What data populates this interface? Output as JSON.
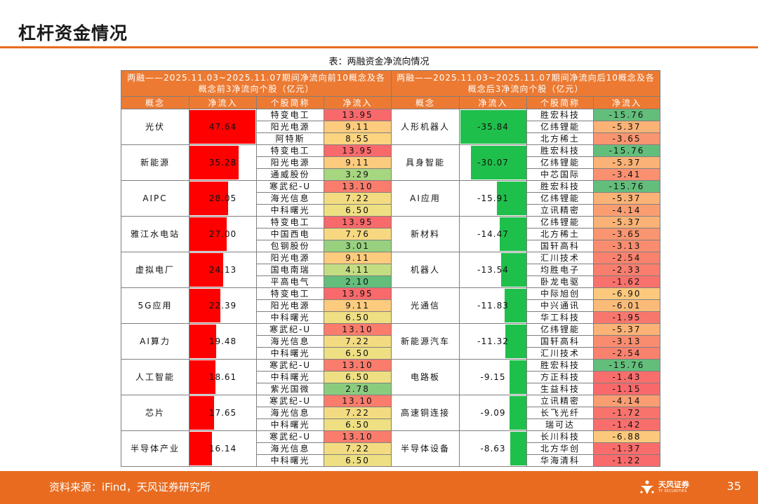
{
  "header": {
    "title": "杠杆资金情况"
  },
  "caption": "表：两融资金净流向情况",
  "table": {
    "left_heading": "两融——2025.11.03~2025.11.07期间净流向前10概念及各概念前3净流向个股（亿元）",
    "right_heading": "两融——2025.11.03~2025.11.07期间净流向后10概念及各概念后3净流向个股（亿元）",
    "col_concept": "概念",
    "col_flow": "净流入",
    "col_stock": "个股简称",
    "col_stock_flow": "净流入",
    "left": [
      {
        "concept": "光伏",
        "flow": "47.64",
        "stocks": [
          {
            "name": "特变电工",
            "flow": "13.95"
          },
          {
            "name": "阳光电源",
            "flow": "9.11"
          },
          {
            "name": "阿特斯",
            "flow": "8.55"
          }
        ]
      },
      {
        "concept": "新能源",
        "flow": "35.28",
        "stocks": [
          {
            "name": "特变电工",
            "flow": "13.95"
          },
          {
            "name": "阳光电源",
            "flow": "9.11"
          },
          {
            "name": "通威股份",
            "flow": "3.29"
          }
        ]
      },
      {
        "concept": "AIPC",
        "flow": "28.05",
        "stocks": [
          {
            "name": "寒武纪-U",
            "flow": "13.10"
          },
          {
            "name": "海光信息",
            "flow": "7.22"
          },
          {
            "name": "中科曙光",
            "flow": "6.50"
          }
        ]
      },
      {
        "concept": "雅江水电站",
        "flow": "27.00",
        "stocks": [
          {
            "name": "特变电工",
            "flow": "13.95"
          },
          {
            "name": "中国西电",
            "flow": "7.76"
          },
          {
            "name": "包钢股份",
            "flow": "3.01"
          }
        ]
      },
      {
        "concept": "虚拟电厂",
        "flow": "24.13",
        "stocks": [
          {
            "name": "阳光电源",
            "flow": "9.11"
          },
          {
            "name": "国电南瑞",
            "flow": "4.11"
          },
          {
            "name": "平高电气",
            "flow": "2.10"
          }
        ]
      },
      {
        "concept": "5G应用",
        "flow": "22.39",
        "stocks": [
          {
            "name": "特变电工",
            "flow": "13.95"
          },
          {
            "name": "阳光电源",
            "flow": "9.11"
          },
          {
            "name": "中科曙光",
            "flow": "6.50"
          }
        ]
      },
      {
        "concept": "AI算力",
        "flow": "19.48",
        "stocks": [
          {
            "name": "寒武纪-U",
            "flow": "13.10"
          },
          {
            "name": "海光信息",
            "flow": "7.22"
          },
          {
            "name": "中科曙光",
            "flow": "6.50"
          }
        ]
      },
      {
        "concept": "人工智能",
        "flow": "18.61",
        "stocks": [
          {
            "name": "寒武纪-U",
            "flow": "13.10"
          },
          {
            "name": "中科曙光",
            "flow": "6.50"
          },
          {
            "name": "紫光国微",
            "flow": "2.78"
          }
        ]
      },
      {
        "concept": "芯片",
        "flow": "17.65",
        "stocks": [
          {
            "name": "寒武纪-U",
            "flow": "13.10"
          },
          {
            "name": "海光信息",
            "flow": "7.22"
          },
          {
            "name": "中科曙光",
            "flow": "6.50"
          }
        ]
      },
      {
        "concept": "半导体产业",
        "flow": "16.14",
        "stocks": [
          {
            "name": "寒武纪-U",
            "flow": "13.10"
          },
          {
            "name": "海光信息",
            "flow": "7.22"
          },
          {
            "name": "中科曙光",
            "flow": "6.50"
          }
        ]
      }
    ],
    "right": [
      {
        "concept": "人形机器人",
        "flow": "-35.84",
        "stocks": [
          {
            "name": "胜宏科技",
            "flow": "-15.76"
          },
          {
            "name": "亿纬锂能",
            "flow": "-5.37"
          },
          {
            "name": "北方稀土",
            "flow": "-3.65"
          }
        ]
      },
      {
        "concept": "具身智能",
        "flow": "-30.07",
        "stocks": [
          {
            "name": "胜宏科技",
            "flow": "-15.76"
          },
          {
            "name": "亿纬锂能",
            "flow": "-5.37"
          },
          {
            "name": "中芯国际",
            "flow": "-3.41"
          }
        ]
      },
      {
        "concept": "AI应用",
        "flow": "-15.91",
        "stocks": [
          {
            "name": "胜宏科技",
            "flow": "-15.76"
          },
          {
            "name": "亿纬锂能",
            "flow": "-5.37"
          },
          {
            "name": "立讯精密",
            "flow": "-4.14"
          }
        ]
      },
      {
        "concept": "新材料",
        "flow": "-14.47",
        "stocks": [
          {
            "name": "亿纬锂能",
            "flow": "-5.37"
          },
          {
            "name": "北方稀土",
            "flow": "-3.65"
          },
          {
            "name": "国轩高科",
            "flow": "-3.13"
          }
        ]
      },
      {
        "concept": "机器人",
        "flow": "-13.54",
        "stocks": [
          {
            "name": "汇川技术",
            "flow": "-2.54"
          },
          {
            "name": "均胜电子",
            "flow": "-2.33"
          },
          {
            "name": "卧龙电驱",
            "flow": "-1.62"
          }
        ]
      },
      {
        "concept": "光通信",
        "flow": "-11.83",
        "stocks": [
          {
            "name": "中际旭创",
            "flow": "-6.90"
          },
          {
            "name": "中兴通讯",
            "flow": "-6.01"
          },
          {
            "name": "华工科技",
            "flow": "-1.95"
          }
        ]
      },
      {
        "concept": "新能源汽车",
        "flow": "-11.32",
        "stocks": [
          {
            "name": "亿纬锂能",
            "flow": "-5.37"
          },
          {
            "name": "国轩高科",
            "flow": "-3.13"
          },
          {
            "name": "汇川技术",
            "flow": "-2.54"
          }
        ]
      },
      {
        "concept": "电路板",
        "flow": "-9.15",
        "stocks": [
          {
            "name": "胜宏科技",
            "flow": "-15.76"
          },
          {
            "name": "方正科技",
            "flow": "-1.43"
          },
          {
            "name": "生益科技",
            "flow": "-1.15"
          }
        ]
      },
      {
        "concept": "高速铜连接",
        "flow": "-9.09",
        "stocks": [
          {
            "name": "立讯精密",
            "flow": "-4.14"
          },
          {
            "name": "长飞光纤",
            "flow": "-1.72"
          },
          {
            "name": "瑞可达",
            "flow": "-1.42"
          }
        ]
      },
      {
        "concept": "半导体设备",
        "flow": "-8.63",
        "stocks": [
          {
            "name": "长川科技",
            "flow": "-6.88"
          },
          {
            "name": "北方华创",
            "flow": "-1.37"
          },
          {
            "name": "华海清科",
            "flow": "-1.22"
          }
        ]
      }
    ]
  },
  "footer": {
    "source": "资料来源：iFind，天风证券研究所",
    "logo_cn": "天风证券",
    "logo_en": "TF SECURITIES",
    "page_number": "35"
  },
  "colors": {
    "accent": "#e86b1f",
    "header_fill": "#ec7a32",
    "bar_positive": "#ff0000",
    "bar_negative": "#1fbf4b"
  }
}
